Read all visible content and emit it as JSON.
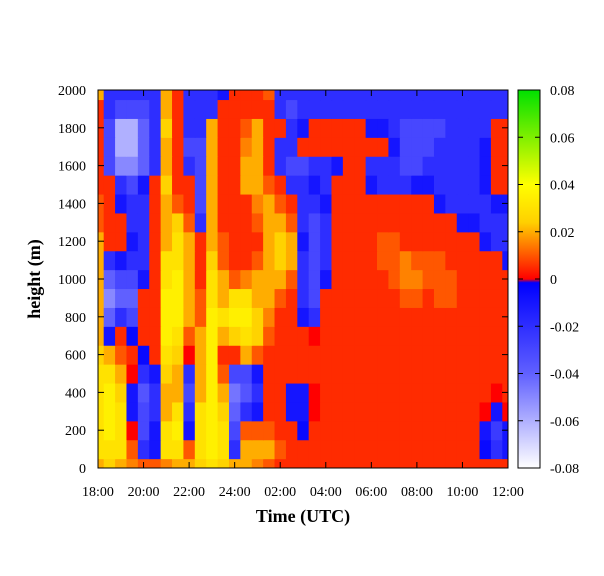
{
  "chart_data": {
    "type": "heatmap",
    "xlabel": "Time (UTC)",
    "ylabel": "height (m)",
    "x_ticks": [
      "18:00",
      "20:00",
      "22:00",
      "24:00",
      "02:00",
      "04:00",
      "06:00",
      "08:00",
      "10:00",
      "12:00"
    ],
    "x_range_hours": [
      18,
      36
    ],
    "y_ticks": [
      0,
      200,
      400,
      600,
      800,
      1000,
      1200,
      1400,
      1600,
      1800,
      2000
    ],
    "ylim": [
      0,
      2000
    ],
    "colorbar": {
      "ticks": [
        "0.08",
        "0.06",
        "0.04",
        "0.02",
        "0",
        "-0.02",
        "-0.04",
        "-0.06",
        "-0.08"
      ],
      "range": [
        -0.08,
        0.08
      ],
      "colors": {
        "min": "#ffffff",
        "neg_mid": "#6060ff",
        "neg": "#0000ff",
        "zero_low": "#ff0000",
        "zero_high": "#ffd000",
        "pos_mid": "#ffff00",
        "max": "#00e000"
      }
    },
    "time_hours": [
      18.0,
      18.5,
      19.0,
      19.5,
      20.0,
      20.5,
      21.0,
      21.5,
      22.0,
      22.5,
      23.0,
      23.5,
      24.0,
      24.5,
      25.0,
      25.5,
      26.0,
      26.5,
      27.0,
      27.5,
      28.0,
      28.5,
      29.0,
      29.5,
      30.0,
      30.5,
      31.0,
      31.5,
      32.0,
      32.5,
      33.0,
      33.5,
      34.0,
      34.5,
      35.0,
      35.5,
      36.0
    ],
    "height_m": [
      0,
      100,
      200,
      300,
      400,
      500,
      600,
      700,
      800,
      900,
      1000,
      1100,
      1200,
      1300,
      1400,
      1500,
      1600,
      1700,
      1800,
      1900,
      2000
    ],
    "values": [
      [
        0.02,
        0.025,
        0.02,
        0.015,
        0.01,
        0.01,
        0.015,
        0.02,
        0.02,
        0.025,
        0.03,
        0.025,
        0.02,
        0.02,
        0.015,
        0.01,
        0.005,
        0.005,
        0.005,
        0.005,
        0.005,
        0.005,
        0.005,
        0.005,
        0.005,
        0.005,
        0.005,
        0.005,
        0.005,
        0.005,
        0.005,
        0.005,
        0.005,
        0.005,
        0.005,
        0.005,
        0.005
      ],
      [
        0.03,
        0.03,
        0.03,
        0.01,
        -0.02,
        -0.01,
        0.03,
        0.03,
        0.01,
        0.03,
        0.035,
        0.03,
        -0.02,
        0.02,
        0.02,
        0.02,
        0.01,
        0.005,
        0.005,
        0.005,
        0.005,
        0.005,
        0.005,
        0.005,
        0.005,
        0.005,
        0.005,
        0.005,
        0.005,
        0.005,
        0.005,
        0.005,
        0.005,
        0.005,
        -0.005,
        -0.02,
        -0.01
      ],
      [
        0.03,
        0.035,
        0.03,
        0.0,
        -0.03,
        -0.01,
        0.03,
        0.035,
        -0.01,
        0.03,
        0.035,
        0.03,
        -0.03,
        0.01,
        0.01,
        0.01,
        0.005,
        0.005,
        -0.005,
        0.005,
        0.005,
        0.005,
        0.005,
        0.005,
        0.005,
        0.005,
        0.005,
        0.005,
        0.005,
        0.005,
        0.005,
        0.005,
        0.005,
        0.005,
        -0.01,
        -0.025,
        -0.01
      ],
      [
        0.03,
        0.035,
        0.03,
        -0.01,
        -0.03,
        -0.02,
        0.02,
        0.03,
        -0.02,
        0.03,
        0.035,
        0.025,
        -0.04,
        -0.02,
        -0.01,
        0.005,
        0.005,
        -0.01,
        -0.01,
        0.0,
        0.005,
        0.005,
        0.005,
        0.005,
        0.005,
        0.005,
        0.005,
        0.005,
        0.005,
        0.005,
        0.005,
        0.005,
        0.005,
        0.005,
        0.0,
        -0.01,
        0.0
      ],
      [
        0.03,
        0.035,
        0.025,
        -0.01,
        -0.035,
        -0.02,
        0.02,
        0.02,
        -0.03,
        0.02,
        0.035,
        0.02,
        -0.045,
        -0.035,
        -0.02,
        0.005,
        0.005,
        -0.01,
        -0.01,
        0.0,
        0.005,
        0.005,
        0.005,
        0.005,
        0.005,
        0.005,
        0.005,
        0.005,
        0.005,
        0.005,
        0.005,
        0.005,
        0.005,
        0.005,
        0.005,
        0.0,
        0.005
      ],
      [
        0.03,
        0.03,
        0.02,
        0.0,
        -0.02,
        -0.01,
        0.025,
        0.02,
        -0.02,
        0.02,
        0.035,
        0.01,
        -0.03,
        -0.03,
        -0.01,
        0.005,
        0.005,
        0.005,
        0.005,
        0.005,
        0.005,
        0.005,
        0.005,
        0.005,
        0.005,
        0.005,
        0.005,
        0.005,
        0.005,
        0.005,
        0.005,
        0.005,
        0.005,
        0.005,
        0.005,
        0.005,
        0.005
      ],
      [
        0.025,
        0.02,
        0.01,
        0.005,
        -0.005,
        0.005,
        0.03,
        0.025,
        0.0,
        0.02,
        0.035,
        0.005,
        0.005,
        0.02,
        0.01,
        0.005,
        0.005,
        0.005,
        0.005,
        0.005,
        0.005,
        0.005,
        0.005,
        0.005,
        0.005,
        0.005,
        0.005,
        0.005,
        0.005,
        0.005,
        0.005,
        0.005,
        0.005,
        0.005,
        0.005,
        0.005,
        0.005
      ],
      [
        0.02,
        -0.01,
        0.005,
        -0.005,
        0.005,
        0.005,
        0.035,
        0.03,
        0.01,
        0.02,
        0.035,
        0.02,
        0.025,
        0.03,
        0.025,
        0.01,
        0.005,
        0.005,
        0.005,
        0.0,
        0.005,
        0.005,
        0.005,
        0.005,
        0.005,
        0.005,
        0.005,
        0.005,
        0.005,
        0.005,
        0.005,
        0.005,
        0.005,
        0.005,
        0.005,
        0.005,
        0.005
      ],
      [
        0.02,
        -0.04,
        -0.02,
        -0.03,
        0.005,
        0.005,
        0.035,
        0.035,
        0.02,
        0.01,
        0.035,
        0.03,
        0.035,
        0.035,
        0.025,
        0.015,
        0.005,
        0.005,
        -0.01,
        -0.02,
        0.005,
        0.005,
        0.005,
        0.005,
        0.005,
        0.005,
        0.005,
        0.005,
        0.005,
        0.005,
        0.005,
        0.005,
        0.005,
        0.005,
        0.005,
        0.005,
        0.005
      ],
      [
        0.02,
        -0.05,
        -0.04,
        -0.04,
        0.005,
        0.005,
        0.035,
        0.035,
        0.02,
        0.01,
        0.03,
        0.02,
        0.03,
        0.03,
        0.02,
        0.02,
        0.01,
        0.005,
        -0.02,
        -0.03,
        0.005,
        0.005,
        0.005,
        0.005,
        0.005,
        0.005,
        0.005,
        0.01,
        0.01,
        0.005,
        0.01,
        0.01,
        0.005,
        0.005,
        0.005,
        0.005,
        0.005
      ],
      [
        0.02,
        -0.04,
        -0.03,
        -0.03,
        -0.01,
        0.005,
        0.03,
        0.035,
        0.02,
        0.005,
        0.03,
        0.02,
        0.01,
        0.015,
        0.02,
        0.02,
        0.02,
        0.01,
        -0.02,
        -0.03,
        -0.01,
        0.005,
        0.005,
        0.005,
        0.005,
        0.005,
        0.01,
        0.015,
        0.015,
        0.01,
        0.01,
        0.01,
        0.005,
        0.005,
        0.005,
        0.005,
        0.005
      ],
      [
        0.02,
        -0.02,
        -0.01,
        -0.02,
        -0.02,
        0.005,
        0.03,
        0.03,
        0.02,
        0.005,
        0.025,
        0.01,
        0.005,
        0.005,
        0.01,
        0.02,
        0.025,
        0.02,
        -0.02,
        -0.03,
        -0.02,
        0.005,
        0.005,
        0.005,
        0.005,
        0.01,
        0.01,
        0.015,
        0.01,
        0.01,
        0.01,
        0.005,
        0.005,
        0.005,
        0.005,
        0.005,
        -0.01
      ],
      [
        0.02,
        0.005,
        0.005,
        -0.01,
        -0.02,
        0.005,
        0.02,
        0.03,
        0.02,
        0.005,
        0.02,
        0.01,
        0.005,
        0.005,
        0.005,
        0.02,
        0.025,
        0.02,
        -0.01,
        -0.03,
        -0.02,
        0.005,
        0.005,
        0.005,
        0.005,
        0.01,
        0.01,
        0.005,
        0.005,
        0.005,
        0.005,
        0.005,
        0.005,
        0.005,
        -0.01,
        -0.02,
        -0.02
      ],
      [
        0.01,
        0.005,
        0.005,
        -0.02,
        -0.02,
        0.005,
        0.02,
        0.025,
        0.01,
        -0.02,
        0.02,
        0.005,
        0.005,
        0.005,
        0.01,
        0.02,
        0.02,
        0.01,
        -0.02,
        -0.03,
        -0.02,
        0.005,
        0.005,
        0.005,
        0.005,
        0.005,
        0.005,
        0.005,
        0.005,
        0.005,
        0.005,
        0.005,
        -0.01,
        -0.01,
        -0.02,
        -0.02,
        -0.02
      ],
      [
        0.01,
        0.005,
        -0.01,
        -0.02,
        -0.02,
        0.005,
        0.02,
        0.01,
        0.005,
        -0.03,
        0.02,
        0.005,
        0.005,
        0.005,
        0.015,
        0.02,
        0.01,
        0.005,
        -0.02,
        -0.02,
        -0.01,
        0.005,
        0.005,
        0.005,
        0.005,
        0.005,
        0.005,
        0.005,
        0.005,
        0.005,
        -0.01,
        -0.02,
        -0.02,
        -0.02,
        -0.02,
        -0.01,
        -0.01
      ],
      [
        0.005,
        0.005,
        -0.02,
        -0.03,
        -0.01,
        0.005,
        0.025,
        0.005,
        0.005,
        -0.03,
        0.02,
        0.005,
        0.005,
        0.02,
        0.02,
        0.01,
        0.005,
        -0.02,
        -0.02,
        -0.01,
        -0.02,
        0.005,
        0.005,
        0.005,
        -0.01,
        -0.02,
        -0.02,
        -0.02,
        -0.01,
        -0.01,
        -0.02,
        -0.02,
        -0.02,
        -0.02,
        -0.01,
        0.005,
        0.005
      ],
      [
        0.005,
        -0.03,
        -0.05,
        -0.05,
        -0.04,
        -0.02,
        0.02,
        0.005,
        -0.02,
        -0.03,
        0.02,
        0.005,
        0.005,
        0.02,
        0.02,
        0.005,
        -0.02,
        -0.03,
        -0.03,
        -0.02,
        -0.02,
        -0.01,
        0.005,
        0.005,
        -0.02,
        -0.02,
        -0.02,
        -0.03,
        -0.03,
        -0.02,
        -0.02,
        -0.02,
        -0.02,
        -0.02,
        -0.01,
        0.005,
        0.005
      ],
      [
        0.005,
        -0.03,
        -0.06,
        -0.06,
        -0.04,
        -0.02,
        0.02,
        0.005,
        -0.03,
        -0.03,
        0.02,
        0.005,
        0.005,
        0.015,
        0.02,
        0.005,
        -0.02,
        -0.02,
        0.005,
        0.005,
        0.005,
        0.005,
        0.005,
        0.005,
        0.005,
        0.005,
        -0.01,
        -0.03,
        -0.03,
        -0.03,
        -0.02,
        -0.02,
        -0.02,
        -0.02,
        -0.01,
        0.005,
        0.005
      ],
      [
        0.005,
        -0.03,
        -0.06,
        -0.06,
        -0.04,
        -0.02,
        0.025,
        0.005,
        -0.02,
        -0.02,
        0.02,
        0.005,
        0.005,
        0.01,
        0.02,
        0.005,
        0.005,
        -0.02,
        -0.01,
        0.005,
        0.005,
        0.005,
        0.005,
        0.005,
        -0.01,
        -0.01,
        -0.02,
        -0.03,
        -0.03,
        -0.03,
        -0.03,
        -0.02,
        -0.02,
        -0.02,
        -0.02,
        0.005,
        0.005
      ],
      [
        0.005,
        -0.02,
        -0.03,
        -0.03,
        -0.03,
        -0.02,
        0.02,
        0.005,
        -0.02,
        -0.02,
        -0.02,
        0.005,
        0.005,
        0.005,
        0.005,
        0.005,
        -0.02,
        -0.03,
        -0.02,
        -0.02,
        -0.02,
        -0.02,
        -0.02,
        -0.02,
        -0.02,
        -0.02,
        -0.02,
        -0.02,
        -0.02,
        -0.02,
        -0.02,
        -0.02,
        -0.02,
        -0.02,
        -0.02,
        -0.02,
        -0.02
      ],
      [
        0.02,
        -0.02,
        -0.02,
        -0.02,
        -0.02,
        -0.02,
        0.02,
        0.005,
        -0.02,
        -0.02,
        -0.02,
        -0.01,
        0.005,
        0.005,
        0.005,
        0.01,
        -0.02,
        -0.02,
        -0.02,
        -0.02,
        -0.02,
        -0.02,
        -0.02,
        -0.02,
        -0.02,
        -0.02,
        -0.02,
        -0.02,
        -0.02,
        -0.02,
        -0.02,
        -0.02,
        -0.02,
        -0.02,
        -0.02,
        -0.02,
        -0.02
      ]
    ]
  }
}
